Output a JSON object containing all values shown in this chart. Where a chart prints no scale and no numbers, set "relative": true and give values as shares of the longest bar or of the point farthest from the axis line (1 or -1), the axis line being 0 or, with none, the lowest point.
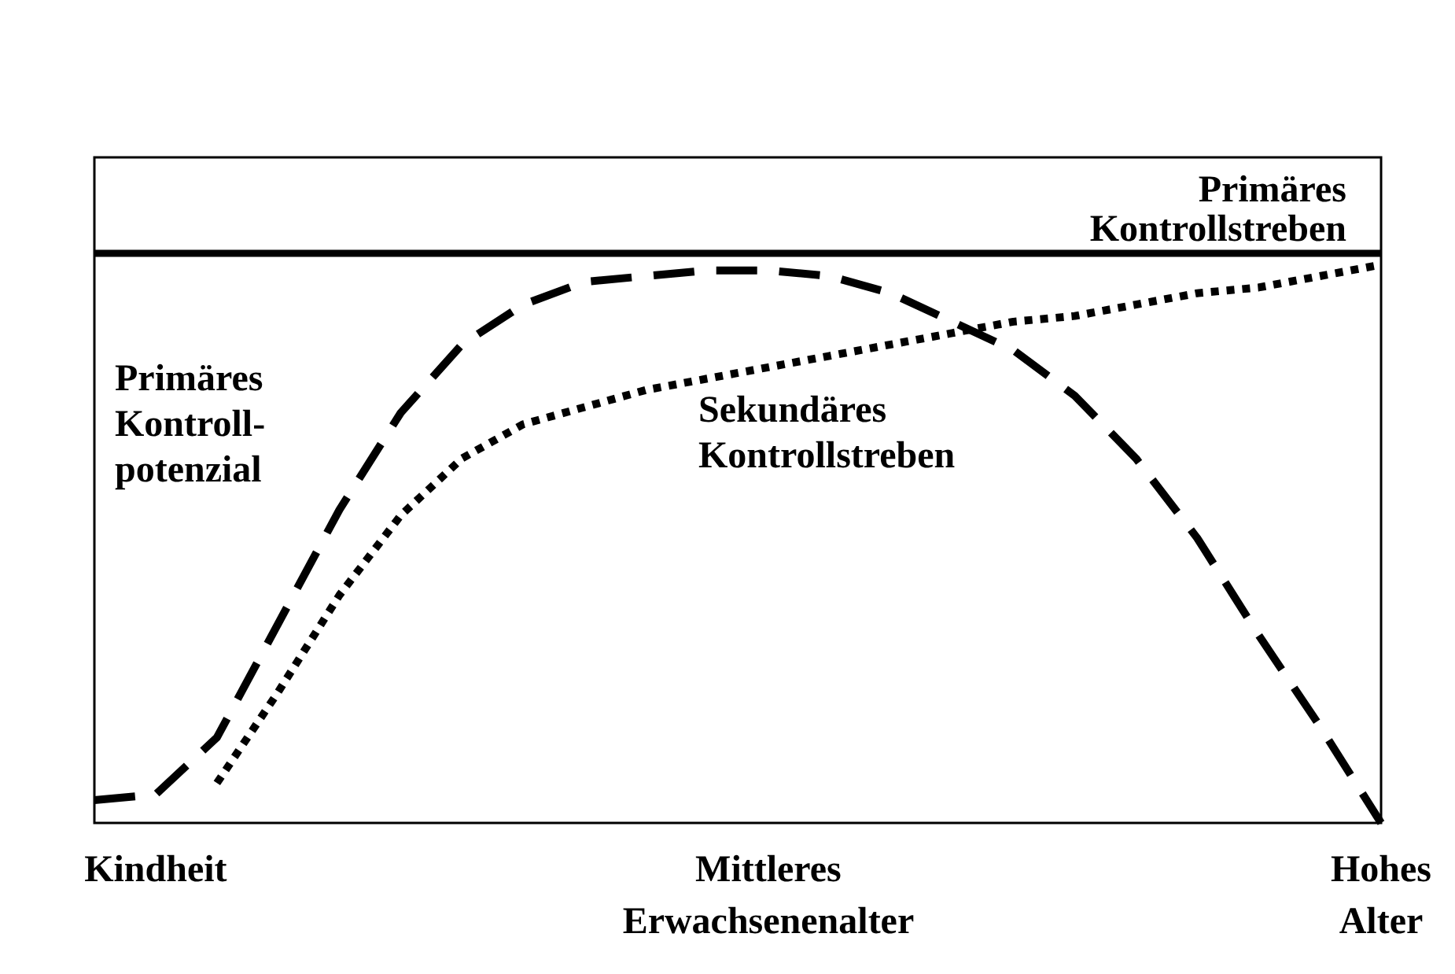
{
  "chart_data": {
    "type": "line",
    "relative": true,
    "legend": false,
    "marker": "none",
    "categories": [
      null,
      "Kindheit",
      null,
      null,
      null,
      null,
      null,
      null,
      null,
      null,
      null,
      "Mittleres Erwachsenenalter",
      null,
      null,
      null,
      null,
      null,
      null,
      null,
      null,
      null,
      "Hohes Alter"
    ],
    "series": [
      {
        "name": "Primäres Kontrollstreben",
        "color": "#000000",
        "line_style": "solid",
        "values": [
          1,
          1,
          1,
          1,
          1,
          1,
          1,
          1,
          1,
          1,
          1,
          1,
          1,
          1,
          1,
          1,
          1,
          1,
          1,
          1,
          1,
          1
        ]
      },
      {
        "name": "Primäres Kontroll-potenzial",
        "color": "#000000",
        "line_style": "dashed",
        "values": [
          0.04,
          0.05,
          0.15,
          0.35,
          0.55,
          0.72,
          0.84,
          0.91,
          0.95,
          0.96,
          0.97,
          0.97,
          0.96,
          0.93,
          0.88,
          0.83,
          0.75,
          0.64,
          0.5,
          0.33,
          0.17,
          0
        ]
      },
      {
        "name": "Sekundäres Kontrollstreben",
        "color": "#000000",
        "line_style": "dotted",
        "values": [
          null,
          null,
          0.07,
          0.23,
          0.4,
          0.54,
          0.64,
          0.7,
          0.73,
          0.76,
          0.78,
          0.8,
          0.82,
          0.84,
          0.86,
          0.88,
          0.89,
          0.91,
          0.93,
          0.94,
          0.96,
          0.98
        ]
      }
    ]
  }
}
